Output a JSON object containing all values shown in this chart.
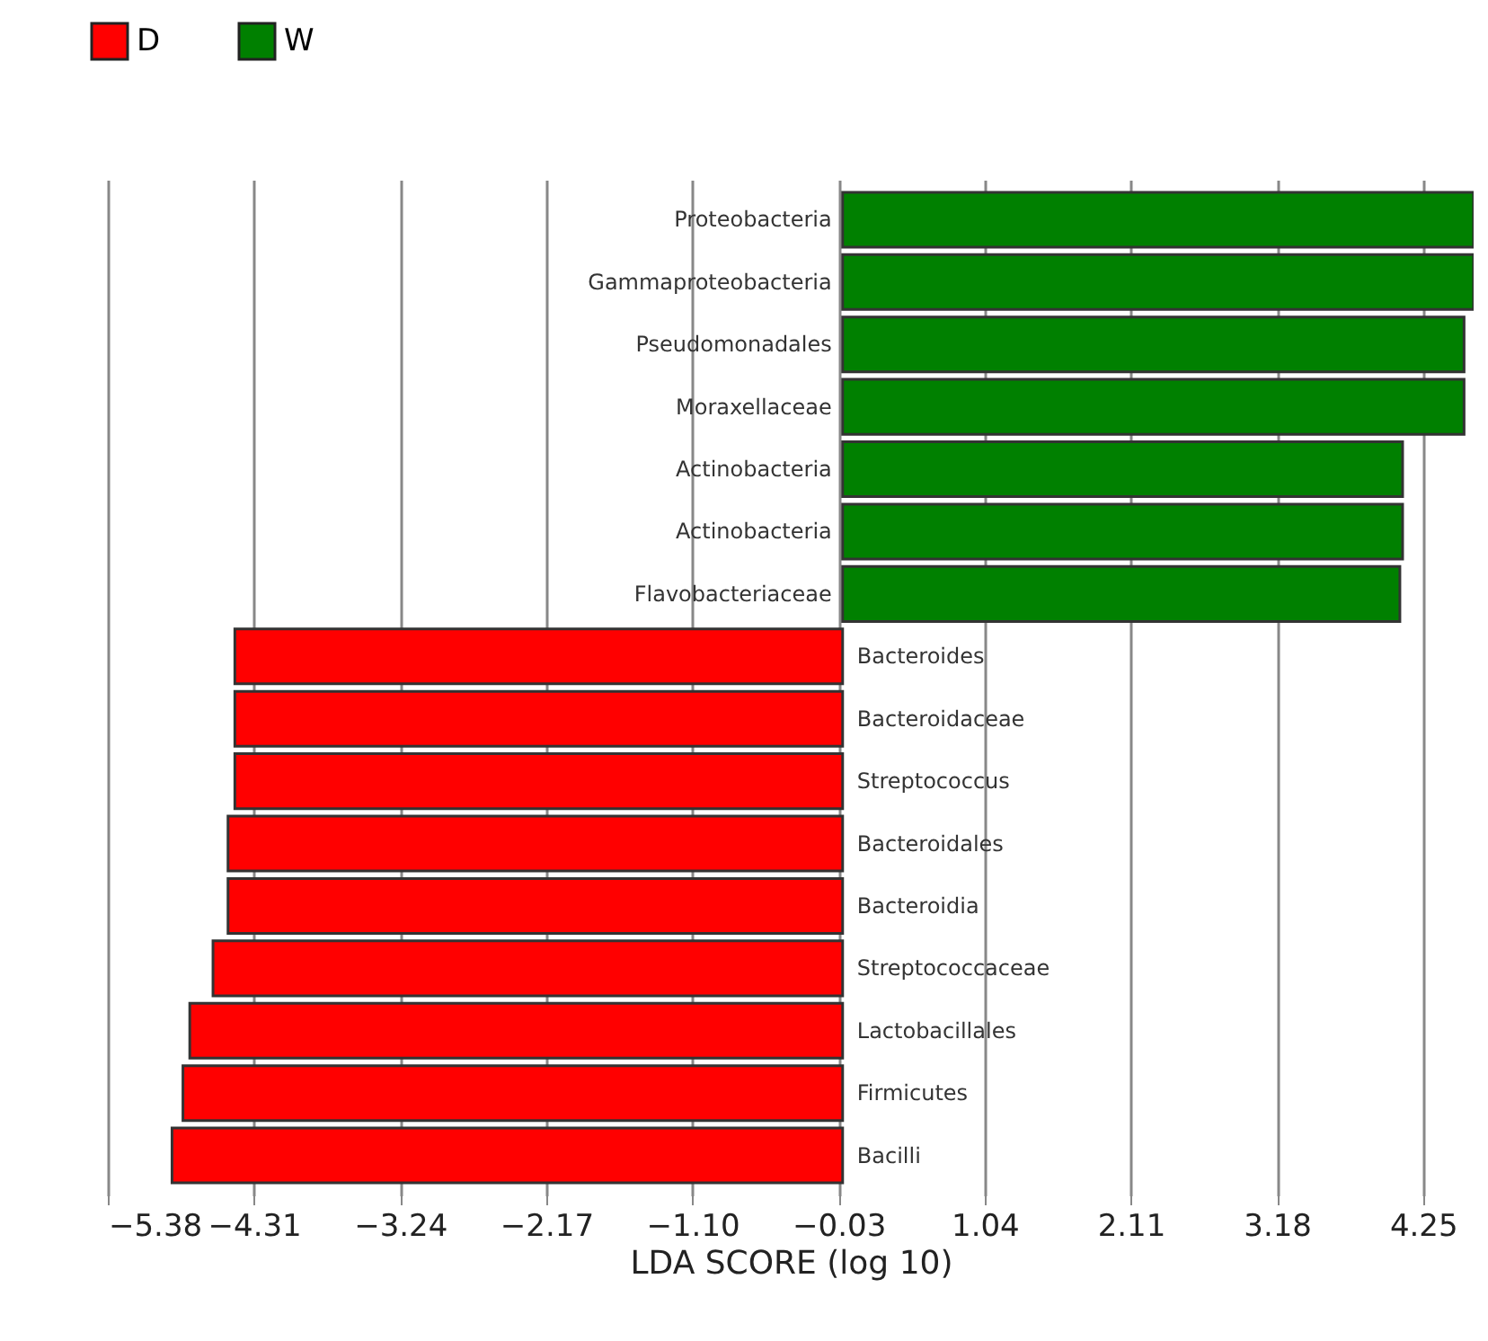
{
  "chart_data": {
    "type": "bar",
    "orientation": "horizontal",
    "xlabel": "LDA SCORE (log 10)",
    "categories": [
      "Proteobacteria",
      "Gammaproteobacteria",
      "Pseudomonadales",
      "Moraxellaceae",
      "Actinobacteria",
      "Actinobacteria",
      "Flavobacteriaceae",
      "Bacteroides",
      "Bacteroidaceae",
      "Streptococcus",
      "Bacteroidales",
      "Bacteroidia",
      "Streptococcaceae",
      "Lactobacillales",
      "Firmicutes",
      "Bacilli"
    ],
    "series": [
      {
        "name": "D",
        "color": "#ff0000",
        "values": [
          null,
          null,
          null,
          null,
          null,
          null,
          null,
          -4.45,
          -4.45,
          -4.45,
          -4.5,
          -4.5,
          -4.61,
          -4.78,
          -4.83,
          -4.91
        ]
      },
      {
        "name": "W",
        "color": "#008000",
        "values": [
          4.62,
          4.62,
          4.55,
          4.55,
          4.1,
          4.1,
          4.08,
          null,
          null,
          null,
          null,
          null,
          null,
          null,
          null,
          null
        ]
      }
    ],
    "xlim": [
      -5.38,
      4.62
    ],
    "xticks": [
      -5.38,
      -4.31,
      -3.24,
      -2.17,
      {
        "value": -1.1,
        "label": "−1.10"
      },
      -0.03,
      1.04,
      2.11,
      3.18,
      4.25
    ],
    "grid": "x",
    "legend": "top left",
    "tick_labels": "x"
  }
}
